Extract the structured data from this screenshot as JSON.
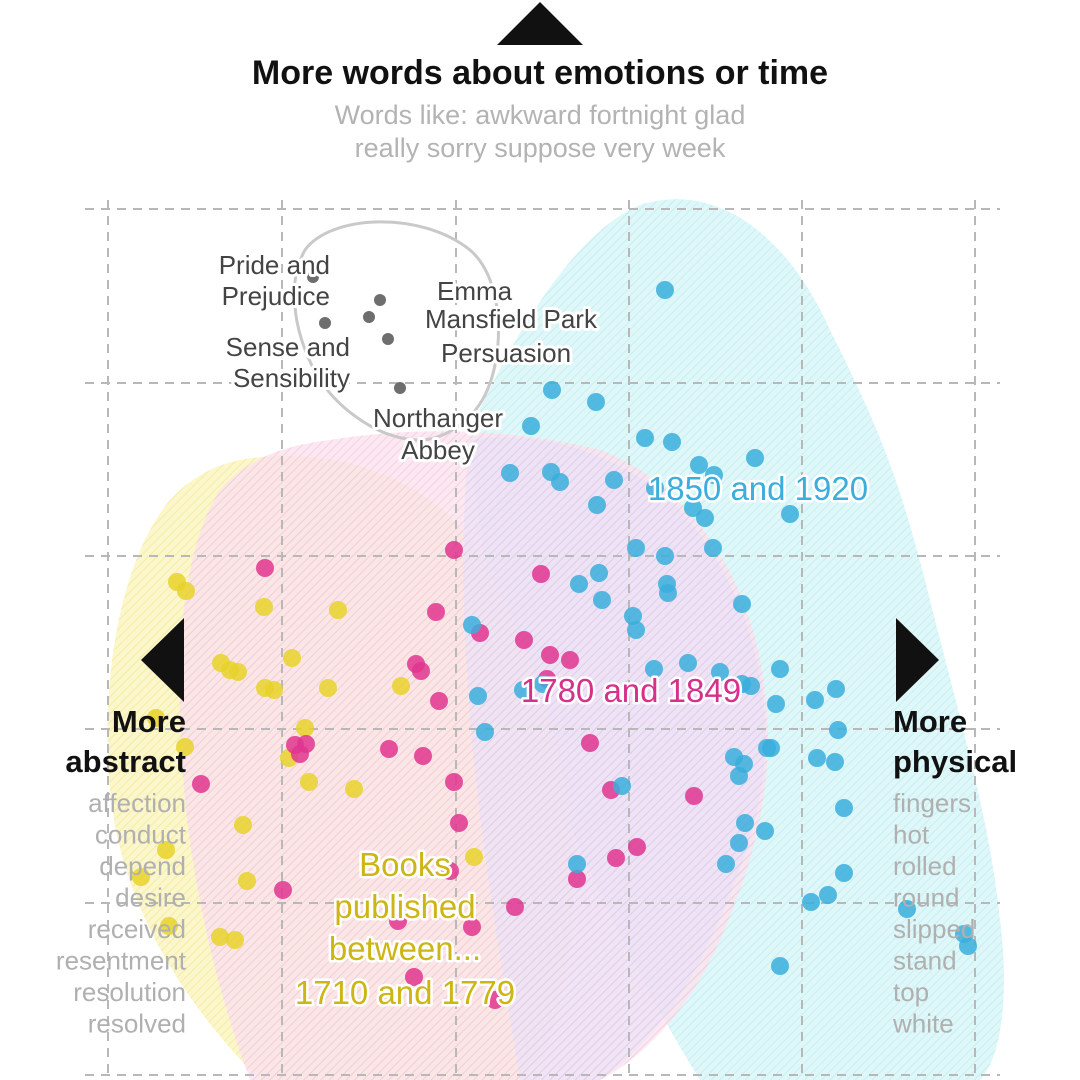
{
  "colors": {
    "early": "#e8d22a",
    "middle": "#e0358f",
    "late": "#3aaedc",
    "austen": "#6e6e6e",
    "title": "#111111",
    "muted": "#b0b0b0"
  },
  "top_axis": {
    "title": "More words about emotions or time",
    "words_line1": "Words like: awkward fortnight glad",
    "words_line2": "really sorry suppose very week"
  },
  "left_axis": {
    "title_line1": "More",
    "title_line2": "abstract",
    "words": [
      "affection",
      "conduct",
      "depend",
      "desire",
      "received",
      "resentment",
      "resolution",
      "resolved"
    ]
  },
  "right_axis": {
    "title_line1": "More",
    "title_line2": "physical",
    "words": [
      "fingers",
      "hot",
      "rolled",
      "round",
      "slipped",
      "stand",
      "top",
      "white"
    ]
  },
  "chart_data": {
    "type": "scatter",
    "title": "More words about emotions or time",
    "xlabel_left": "More abstract",
    "xlabel_right": "More physical",
    "grid": true,
    "xlim": [
      0,
      100
    ],
    "ylim": [
      0,
      100
    ],
    "era_labels": {
      "early_line1": "Books",
      "early_line2": "published",
      "early_line3": "between...",
      "early_line4": "1710 and 1779",
      "middle": "1780 and 1849",
      "late": "1850 and 1920"
    },
    "austen_books": [
      {
        "name_line1": "Pride and",
        "name_line2": "Prejudice",
        "x": 27.3,
        "y": 80.3
      },
      {
        "name_line1": "Emma",
        "name_line2": "",
        "x": 34.0,
        "y": 78.0
      },
      {
        "name_line1": "Mansfield Park",
        "name_line2": "",
        "x": 32.9,
        "y": 76.3
      },
      {
        "name_line1": "Sense and",
        "name_line2": "Sensibility",
        "x": 28.5,
        "y": 75.7
      },
      {
        "name_line1": "Persuasion",
        "name_line2": "",
        "x": 34.8,
        "y": 74.1
      },
      {
        "name_line1": "Northanger",
        "name_line2": "Abbey",
        "x": 36.0,
        "y": 69.2
      }
    ],
    "series": [
      {
        "name": "1710 and 1779",
        "color": "#e8d22a",
        "x": [
          13.7,
          14.6,
          22.4,
          29.8,
          18.1,
          19.0,
          25.2,
          19.8,
          23.4,
          22.5,
          28.8,
          36.1,
          11.6,
          14.5,
          26.5,
          24.9,
          26.9,
          20.3,
          31.4,
          20.7,
          12.6,
          43.4,
          12.9,
          18.0,
          10.1,
          19.5
        ],
        "y": [
          49.8,
          48.9,
          47.3,
          47.0,
          41.7,
          41.0,
          42.2,
          40.8,
          39.0,
          39.2,
          39.2,
          39.4,
          36.2,
          33.3,
          35.2,
          32.2,
          29.8,
          25.5,
          29.1,
          19.9,
          23.0,
          22.3,
          15.4,
          14.3,
          20.3,
          14.0
        ]
      },
      {
        "name": "1780 and 1849",
        "color": "#e0358f",
        "x": [
          22.5,
          41.4,
          50.1,
          39.6,
          44.0,
          48.4,
          51.0,
          37.6,
          38.1,
          53.0,
          50.7,
          39.9,
          25.5,
          26.6,
          34.9,
          38.3,
          16.1,
          41.4,
          55.0,
          57.1,
          65.4,
          57.6,
          41.0,
          53.7,
          24.3,
          35.8,
          43.2,
          37.4,
          45.5,
          59.7,
          41.9,
          47.5,
          26.0
        ],
        "y": [
          51.2,
          53.0,
          50.6,
          46.8,
          44.7,
          44.0,
          42.5,
          41.6,
          40.9,
          42.0,
          40.1,
          37.9,
          33.5,
          33.6,
          33.1,
          32.4,
          29.6,
          29.8,
          33.7,
          29.0,
          28.4,
          22.2,
          20.9,
          20.1,
          19.0,
          15.9,
          15.3,
          10.3,
          8.0,
          23.3,
          25.7,
          17.3,
          32.6
        ]
      },
      {
        "name": "1850 and 1920",
        "color": "#3aaedc",
        "x": [
          62.5,
          51.2,
          49.1,
          55.6,
          60.5,
          63.2,
          51.1,
          52.0,
          47.0,
          57.4,
          55.7,
          61.5,
          65.3,
          71.5,
          65.9,
          67.4,
          66.5,
          75.0,
          59.6,
          55.9,
          62.5,
          67.3,
          53.9,
          62.8,
          59.3,
          70.2,
          62.7,
          59.6,
          43.2,
          56.2,
          61.4,
          48.3,
          50.3,
          43.8,
          68.0,
          64.8,
          74.0,
          70.2,
          71.1,
          73.6,
          79.6,
          77.5,
          79.8,
          77.7,
          72.7,
          73.1,
          79.5,
          70.4,
          69.9,
          69.4,
          44.5,
          58.2,
          70.5,
          80.4,
          72.5,
          69.9,
          53.7,
          68.6,
          80.4,
          78.8,
          77.1,
          86.7,
          92.8,
          92.4,
          74.0
        ],
        "y": [
          79.0,
          69.0,
          65.4,
          67.8,
          64.2,
          63.8,
          60.8,
          59.8,
          60.7,
          60.0,
          57.5,
          59.2,
          57.2,
          62.2,
          61.5,
          60.5,
          56.2,
          56.6,
          53.2,
          50.7,
          52.4,
          53.2,
          49.6,
          48.7,
          46.4,
          47.6,
          49.6,
          45.0,
          45.5,
          48.0,
          41.1,
          39.0,
          39.6,
          38.4,
          40.8,
          41.7,
          41.1,
          39.6,
          39.4,
          37.6,
          39.1,
          38.0,
          35.0,
          32.2,
          33.2,
          33.2,
          31.8,
          31.6,
          30.4,
          32.3,
          34.8,
          29.4,
          25.7,
          27.2,
          24.9,
          23.7,
          21.6,
          21.6,
          20.7,
          18.5,
          17.8,
          17.1,
          13.4,
          14.6,
          11.4
        ]
      }
    ]
  }
}
